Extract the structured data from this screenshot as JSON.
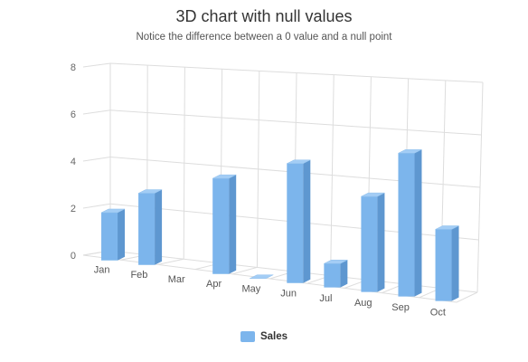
{
  "chart_data": {
    "type": "bar",
    "title": "3D chart with null values",
    "subtitle": "Notice the difference between a 0 value and a null point",
    "categories": [
      "Jan",
      "Feb",
      "Mar",
      "Apr",
      "May",
      "Jun",
      "Jul",
      "Aug",
      "Sep",
      "Oct"
    ],
    "series": [
      {
        "name": "Sales",
        "values": [
          2,
          3,
          null,
          4,
          0,
          5,
          1,
          4,
          6,
          3
        ]
      }
    ],
    "y_ticks": [
      "0",
      "2",
      "4",
      "6",
      "8"
    ],
    "ylim": [
      0,
      8
    ],
    "grid": true,
    "legend_position": "bottom",
    "colors": {
      "bar_front": "#7cb5ec",
      "bar_side": "#5e97d0",
      "bar_top": "#a3cdf5",
      "grid": "#dddddd"
    }
  }
}
